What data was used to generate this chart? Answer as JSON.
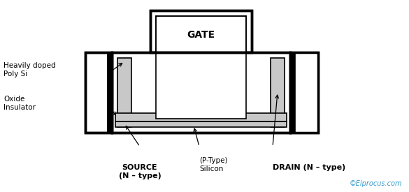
{
  "bg_color": "#ffffff",
  "lc": "#000000",
  "gc": "#c8c8c8",
  "copyright_color": "#3399cc",
  "copyright_text": "©Elprocus.com",
  "gate_text": "GATE",
  "labels": {
    "heavily_doped": "Heavily doped\nPoly Si",
    "oxide_insulator": "Oxide\nInsulator",
    "source": "SOURCE\n(N – type)",
    "ptype": "(P-Type)\nSilicon",
    "drain": "DRAIN (N – type)"
  },
  "figsize": [
    5.85,
    2.75
  ],
  "dpi": 100
}
